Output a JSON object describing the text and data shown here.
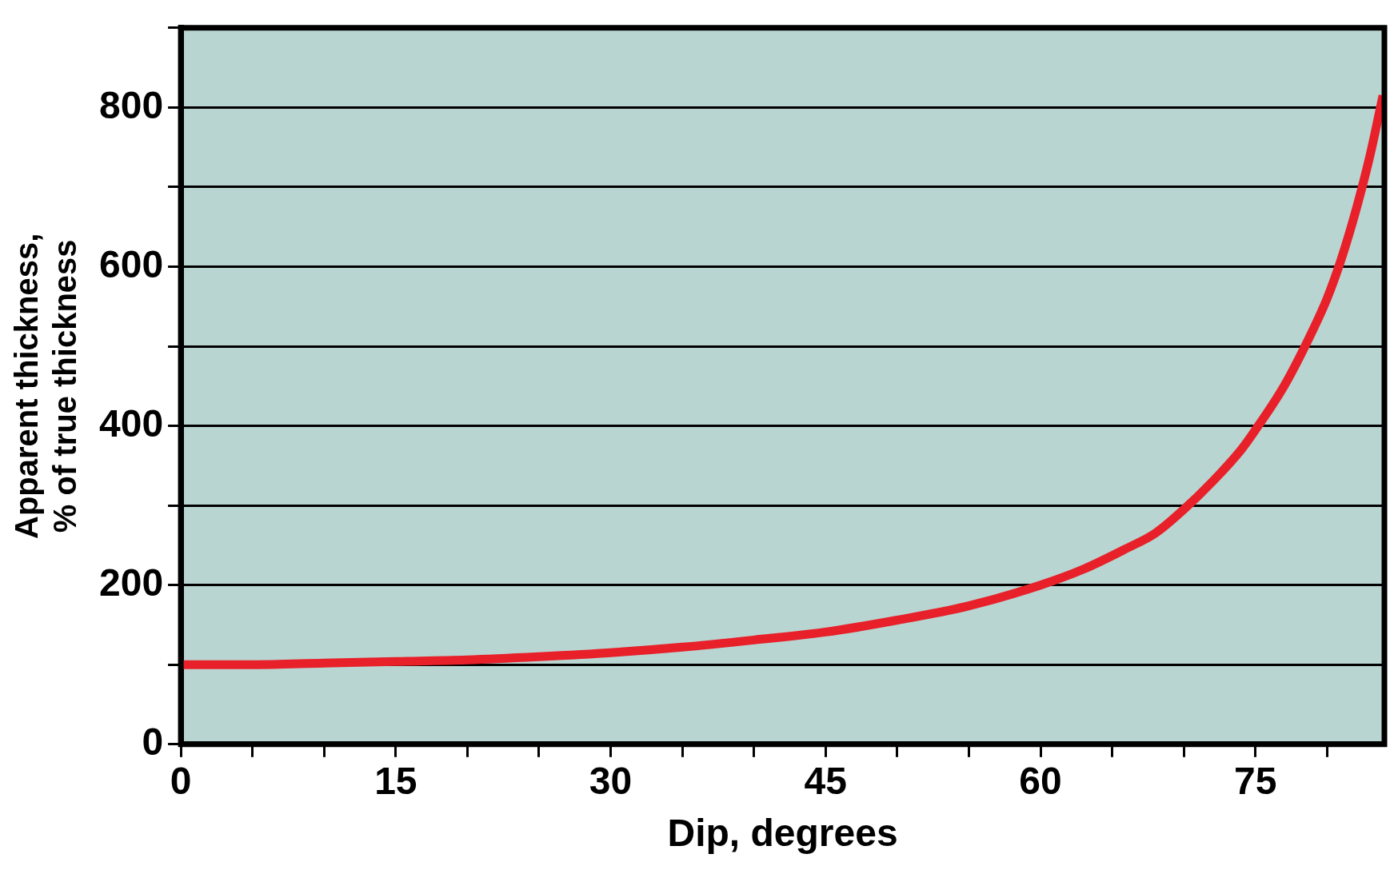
{
  "chart_data": {
    "type": "line",
    "xlabel": "Dip, degrees",
    "ylabel": "Apparent thickness,\n% of true thickness",
    "x": [
      0,
      5,
      10,
      15,
      20,
      25,
      30,
      35,
      40,
      45,
      50,
      55,
      60,
      63,
      66,
      68,
      70,
      72,
      74,
      75,
      77,
      79,
      80,
      81,
      82,
      83,
      83.9
    ],
    "series": [
      {
        "color": "#e8202a",
        "values": [
          100,
          100,
          102,
          104,
          106,
          110,
          115,
          122,
          131,
          141,
          156,
          174,
          200,
          220,
          246,
          265,
          295,
          330,
          370,
          395,
          450,
          520,
          560,
          610,
          670,
          740,
          815
        ]
      }
    ],
    "xlim": [
      0,
      84
    ],
    "xticks": [
      0,
      {
        "value": 5,
        "label": null
      },
      {
        "value": 10,
        "label": null
      },
      15,
      {
        "value": 20,
        "label": null
      },
      {
        "value": 25,
        "label": null
      },
      30,
      {
        "value": 35,
        "label": null
      },
      {
        "value": 40,
        "label": null
      },
      45,
      {
        "value": 50,
        "label": null
      },
      {
        "value": 55,
        "label": null
      },
      60,
      {
        "value": 65,
        "label": null
      },
      {
        "value": 70,
        "label": null
      },
      75,
      {
        "value": 80,
        "label": null
      }
    ],
    "ylim": [
      0,
      900
    ],
    "yticks": [
      0,
      {
        "value": 100,
        "label": null
      },
      200,
      {
        "value": 300,
        "label": null
      },
      400,
      {
        "value": 500,
        "label": null
      },
      600,
      {
        "value": 700,
        "label": null
      },
      800,
      {
        "value": 900,
        "label": null
      }
    ],
    "grid": "y",
    "marker": "none",
    "line_style": "solid"
  }
}
